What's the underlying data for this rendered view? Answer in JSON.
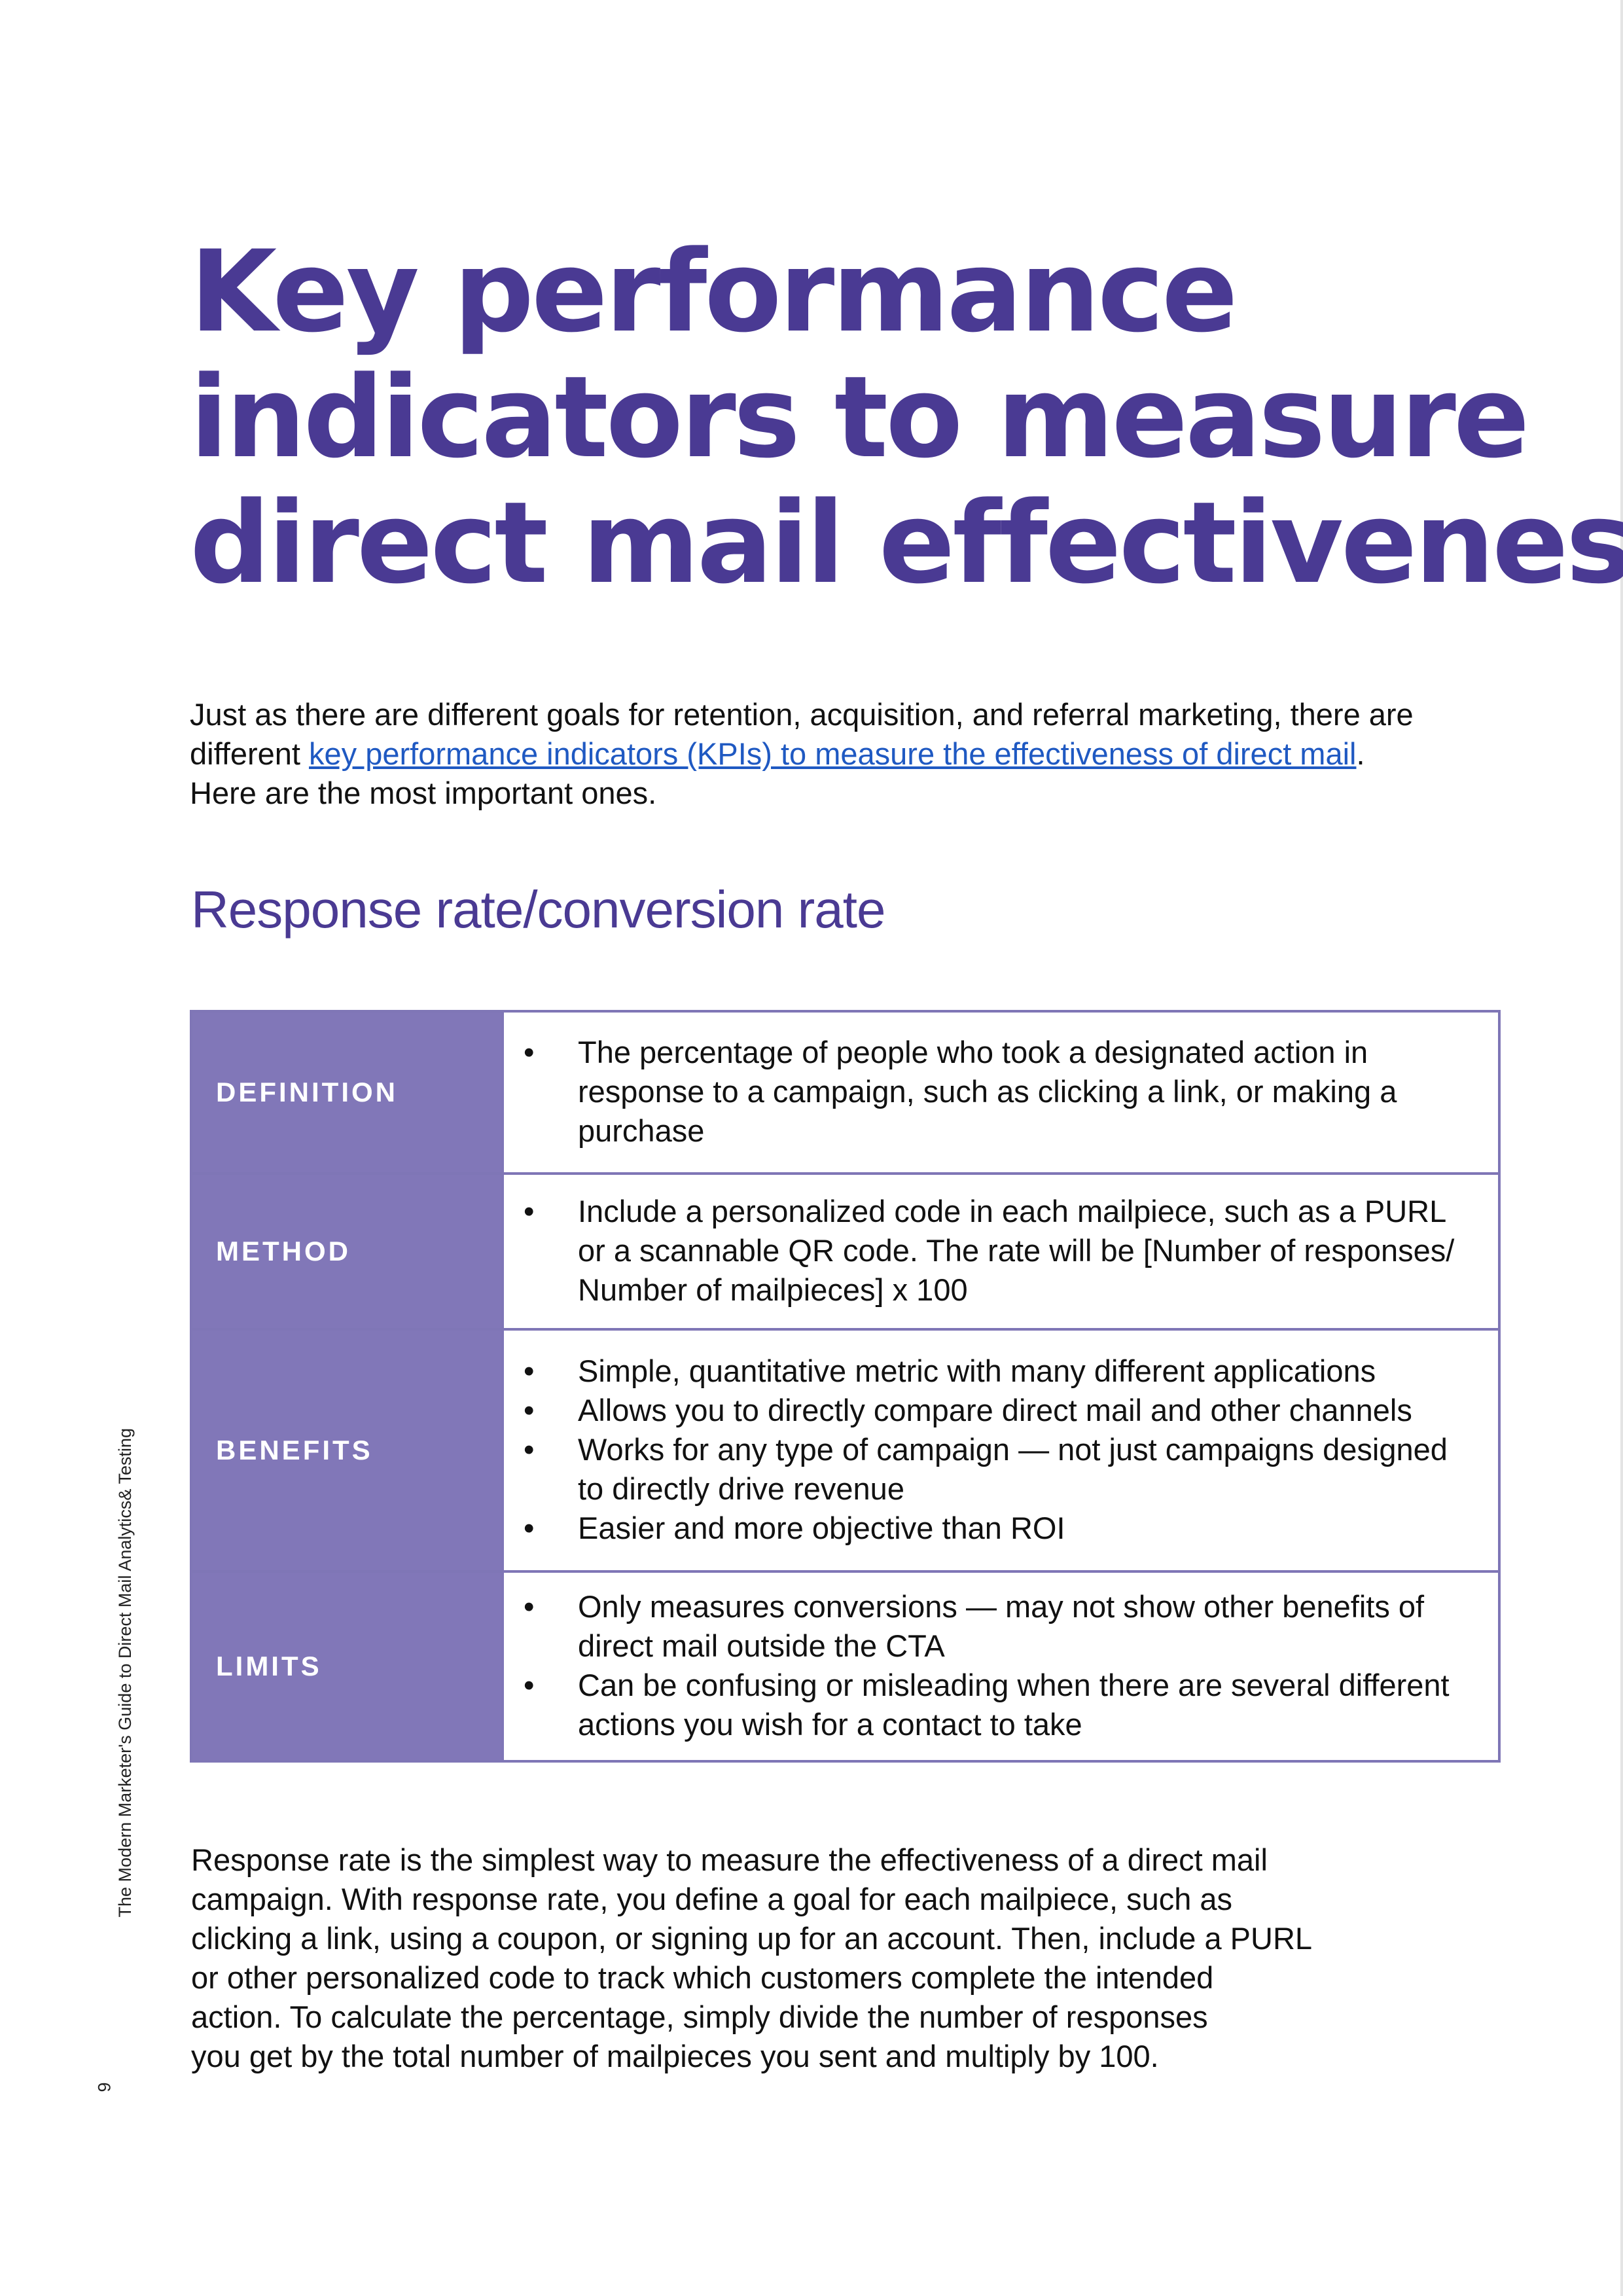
{
  "title_lines": [
    "Key performance",
    "indicators to measure",
    "direct mail effectiveness"
  ],
  "intro": {
    "before_link": "Just as there are different goals for retention, acquisition, and referral marketing, there are different ",
    "link_text": "key performance indicators (KPIs) to measure the effectiveness of direct mail",
    "after_link": ". Here are the most important ones."
  },
  "section_heading": "Response rate/conversion rate",
  "table": {
    "rows": [
      {
        "label": "DEFINITION",
        "bullets": [
          "The percentage of people who took a designated action in response to a campaign, such as clicking a link, or making a purchase"
        ]
      },
      {
        "label": "METHOD",
        "bullets": [
          "Include a personalized code in each mailpiece, such as a PURL or a scannable QR code. The rate will be [Number of responses/ Number of mailpieces] x 100"
        ]
      },
      {
        "label": "BENEFITS",
        "bullets": [
          "Simple, quantitative metric with many different applications",
          "Allows you to directly compare direct mail and other channels",
          "Works for any type of campaign — not just campaigns designed to directly drive revenue",
          "Easier and more objective than ROI"
        ]
      },
      {
        "label": "LIMITS",
        "bullets": [
          "Only measures conversions — may not show other benefits of direct mail outside the CTA",
          "Can be confusing or misleading when there are several different actions you wish for a contact to take"
        ]
      }
    ]
  },
  "outro_lines": [
    "Response rate is the simplest way to measure the effectiveness of a direct mail",
    "campaign. With response rate, you define a goal for each mailpiece, such as",
    "clicking a link, using a coupon, or signing up for an account. Then, include a PURL",
    "or other personalized code to track which customers complete the intended",
    "action. To calculate the percentage, simply divide the number of responses",
    "you get by the total number of mailpieces you sent and multiply by 100."
  ],
  "side_label": "The Modern Marketer's Guide to Direct Mail Analytics& Testing",
  "page_number": "9",
  "colors": {
    "accent_purple": "#4a3a93",
    "table_label_bg": "#8177b8",
    "table_border": "#7f76b6",
    "link_blue": "#1f59c2"
  }
}
